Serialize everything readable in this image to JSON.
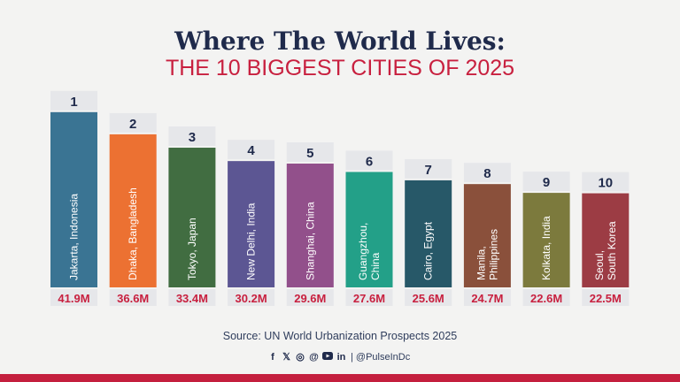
{
  "header": {
    "title": "Where The World Lives:",
    "subtitle": "THE 10 BIGGEST CITIES OF 2025"
  },
  "chart_data": {
    "type": "bar",
    "unit": "M",
    "ylim": [
      0,
      42
    ],
    "grid": false,
    "categories": [
      "Jakarta, Indonesia",
      "Dhaka, Bangladesh",
      "Tokyo, Japan",
      "New Delhi, India",
      "Shanghai, China",
      "Guangzhou, China",
      "Cairo, Egypt",
      "Manila, Philippines",
      "Kolkata, India",
      "Seoul, South Korea"
    ],
    "category_lines": [
      [
        "Jakarta, Indonesia"
      ],
      [
        "Dhaka, Bangladesh"
      ],
      [
        "Tokyo, Japan"
      ],
      [
        "New Delhi, India"
      ],
      [
        "Shanghai, China"
      ],
      [
        "Guangzhou,",
        "China"
      ],
      [
        "Cairo, Egypt"
      ],
      [
        "Manila,",
        "Philippines"
      ],
      [
        "Kolkata, India"
      ],
      [
        "Seoul,",
        "South Korea"
      ]
    ],
    "ranks": [
      "1",
      "2",
      "3",
      "4",
      "5",
      "6",
      "7",
      "8",
      "9",
      "10"
    ],
    "values": [
      41.9,
      36.6,
      33.4,
      30.2,
      29.6,
      27.6,
      25.6,
      24.7,
      22.6,
      22.5
    ],
    "value_labels": [
      "41.9M",
      "36.6M",
      "33.4M",
      "30.2M",
      "29.6M",
      "27.6M",
      "25.6M",
      "24.7M",
      "22.6M",
      "22.5M"
    ],
    "colors": [
      "#3a7493",
      "#ec7132",
      "#416d41",
      "#5c5693",
      "#92508b",
      "#23a088",
      "#275868",
      "#8a503b",
      "#7c7a3d",
      "#9c3c44"
    ]
  },
  "footer": {
    "source": "Source: UN World Urbanization Prospects 2025",
    "social_icons": [
      "facebook-icon",
      "x-icon",
      "instagram-icon",
      "threads-icon",
      "youtube-icon",
      "linkedin-icon"
    ],
    "handle": "| @PulseInDc"
  },
  "colors": {
    "title": "#1f2a4b",
    "accent": "#c8203f",
    "label_box": "#e6e7ea"
  }
}
